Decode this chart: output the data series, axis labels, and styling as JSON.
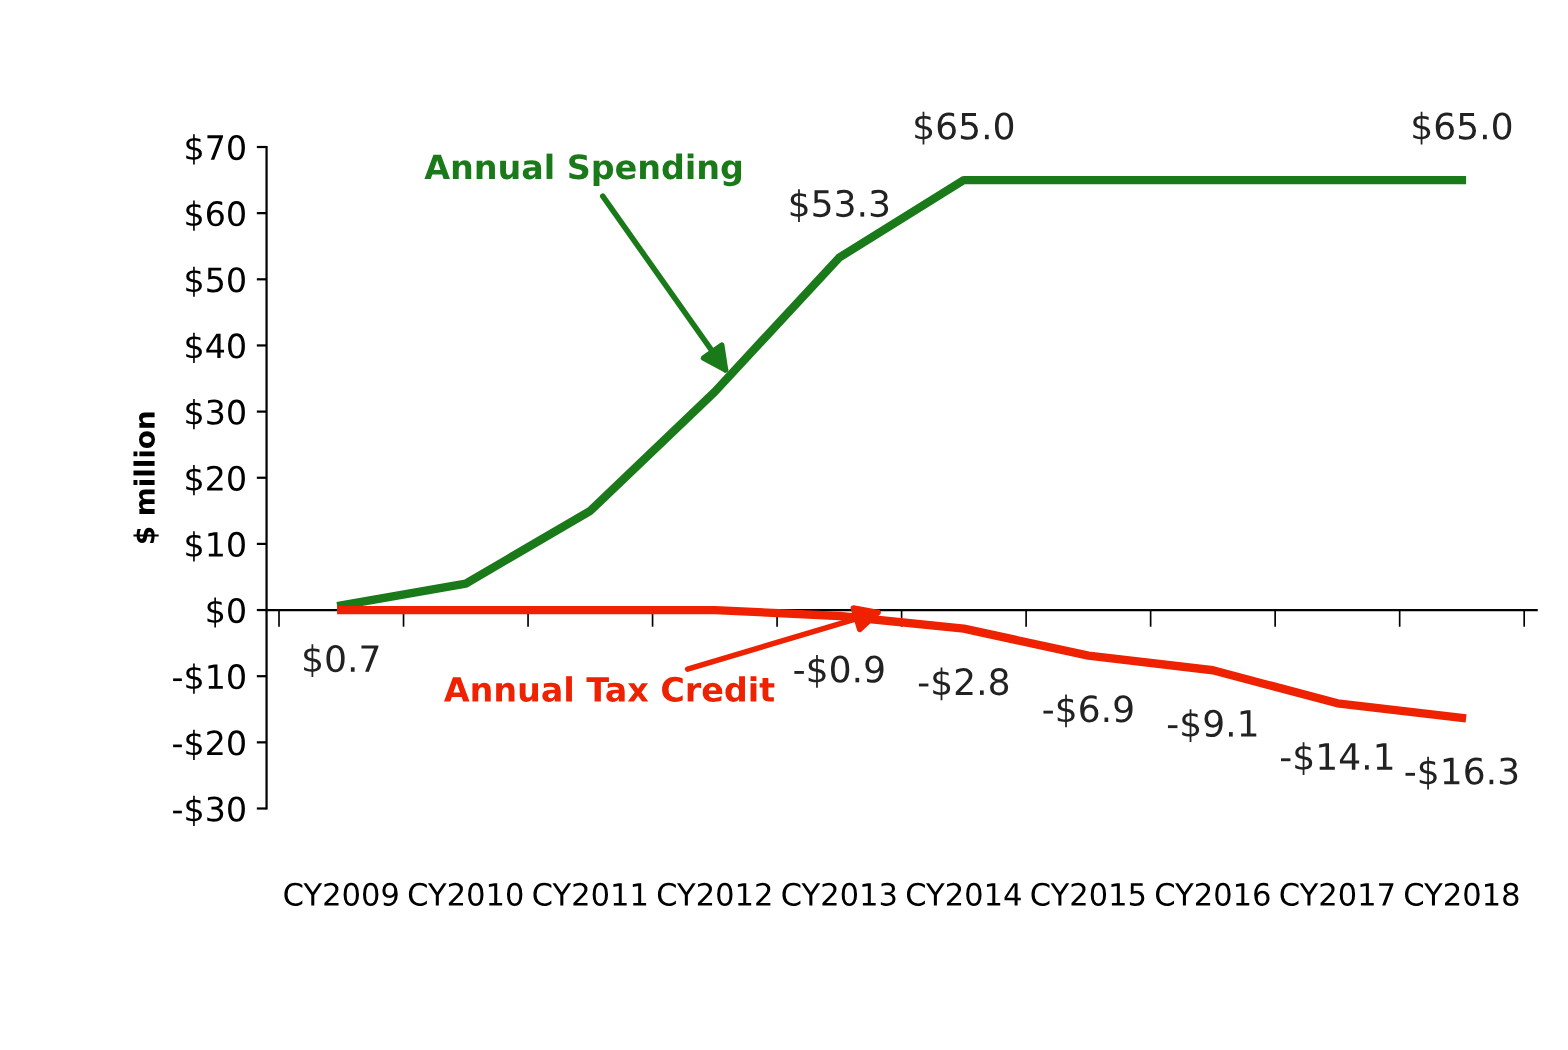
{
  "chart_data": {
    "type": "line",
    "ylabel": "$ million",
    "categories": [
      "CY2009",
      "CY2010",
      "CY2011",
      "CY2012",
      "CY2013",
      "CY2014",
      "CY2015",
      "CY2016",
      "CY2017",
      "CY2018"
    ],
    "series": [
      {
        "name": "Annual Spending",
        "color": "#1a7a1a",
        "values": [
          0.7,
          4,
          15,
          33,
          53.3,
          65.0,
          65.0,
          65.0,
          65.0,
          65.0
        ],
        "value_labels": [
          "$0.7",
          null,
          null,
          null,
          "$53.3",
          "$65.0",
          null,
          null,
          null,
          "$65.0"
        ]
      },
      {
        "name": "Annual Tax Credit",
        "color": "#ee2200",
        "values": [
          0,
          0,
          0,
          0,
          -0.9,
          -2.8,
          -6.9,
          -9.1,
          -14.1,
          -16.3
        ],
        "value_labels": [
          null,
          null,
          null,
          null,
          "-$0.9",
          "-$2.8",
          "-$6.9",
          "-$9.1",
          "-$14.1",
          "-$16.3"
        ]
      }
    ],
    "ylim": [
      -30,
      70
    ],
    "yticks": [
      {
        "value": -30,
        "label": "-$30"
      },
      {
        "value": -20,
        "label": "-$20"
      },
      {
        "value": -10,
        "label": "-$10"
      },
      {
        "value": 0,
        "label": "$0"
      },
      {
        "value": 10,
        "label": "$10"
      },
      {
        "value": 20,
        "label": "$20"
      },
      {
        "value": 30,
        "label": "$30"
      },
      {
        "value": 40,
        "label": "$40"
      },
      {
        "value": 50,
        "label": "$50"
      },
      {
        "value": 60,
        "label": "$60"
      },
      {
        "value": 70,
        "label": "$70"
      }
    ],
    "legend": false,
    "marker": "none",
    "line_style": "solid"
  }
}
